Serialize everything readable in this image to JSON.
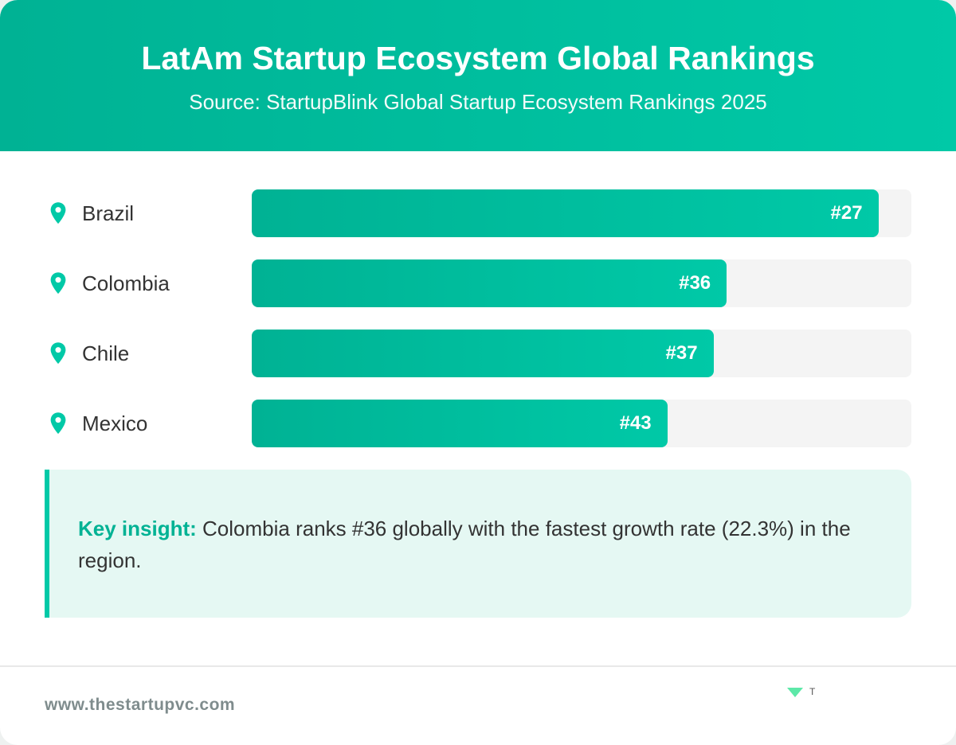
{
  "header": {
    "title": "LatAm Startup Ecosystem Global Rankings",
    "subtitle": "Source: StartupBlink Global Startup Ecosystem Rankings 2025"
  },
  "colors": {
    "accent": "#00c9a7",
    "accent_dark": "#00b294",
    "track": "#f4f4f4",
    "insight_bg": "#e5f8f3"
  },
  "rankings": [
    {
      "country": "Brazil",
      "rank_label": "#27",
      "fill_percent": 95,
      "icon": "map-pin-icon"
    },
    {
      "country": "Colombia",
      "rank_label": "#36",
      "fill_percent": 72,
      "icon": "map-pin-icon"
    },
    {
      "country": "Chile",
      "rank_label": "#37",
      "fill_percent": 70,
      "icon": "map-pin-icon"
    },
    {
      "country": "Mexico",
      "rank_label": "#43",
      "fill_percent": 63,
      "icon": "map-pin-icon"
    }
  ],
  "insight": {
    "label": "Key insight:",
    "text": " Colombia ranks #36 globally with the fastest growth rate (22.3%) in the region."
  },
  "footer": {
    "url": "www.thestartupvc.com",
    "logo_text": "T"
  }
}
